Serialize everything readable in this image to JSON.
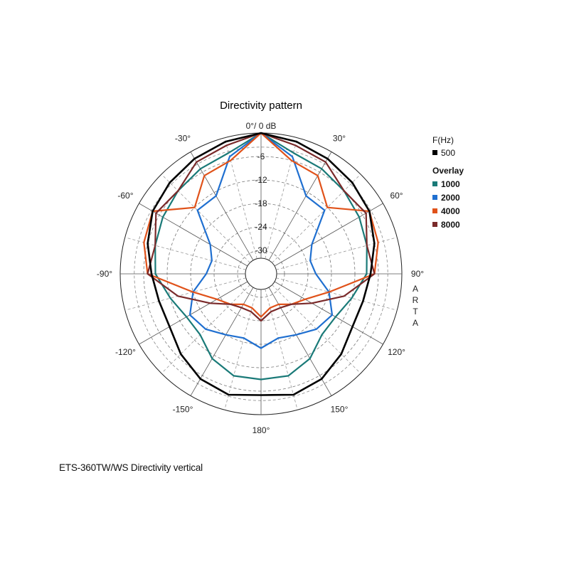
{
  "chart_data": {
    "type": "polar",
    "title": "Directivity pattern",
    "zero_label": "0°/ 0 dB",
    "db_rings": [
      -6,
      -12,
      -18,
      -24,
      -30
    ],
    "db_range": [
      -36,
      0
    ],
    "angle_labels": [
      {
        "angle": -30,
        "text": "-30°"
      },
      {
        "angle": 30,
        "text": "30°"
      },
      {
        "angle": -60,
        "text": "-60°"
      },
      {
        "angle": 60,
        "text": "60°"
      },
      {
        "angle": -90,
        "text": "-90°"
      },
      {
        "angle": 90,
        "text": "90°"
      },
      {
        "angle": -120,
        "text": "-120°"
      },
      {
        "angle": 120,
        "text": "120°"
      },
      {
        "angle": -150,
        "text": "-150°"
      },
      {
        "angle": 150,
        "text": "150°"
      },
      {
        "angle": 180,
        "text": "180°"
      }
    ],
    "watermark": "ARTA",
    "grid": true,
    "legend": {
      "heading": "F(Hz)",
      "main": {
        "name": "500",
        "color": "#000000"
      },
      "overlay_heading": "Overlay",
      "overlays": [
        {
          "name": "1000",
          "color": "#1a7a78"
        },
        {
          "name": "2000",
          "color": "#1f6fd0"
        },
        {
          "name": "4000",
          "color": "#e0521a"
        },
        {
          "name": "8000",
          "color": "#7a2a2a"
        }
      ],
      "placement": "right"
    },
    "series": [
      {
        "name": "500",
        "color": "#000000",
        "angles": [
          0,
          15,
          30,
          45,
          60,
          75,
          90,
          105,
          120,
          135,
          150,
          165,
          180
        ],
        "db": [
          0,
          -1,
          -2,
          -3,
          -4,
          -6,
          -8,
          -9,
          -9,
          -7,
          -5,
          -4,
          -5
        ]
      },
      {
        "name": "1000",
        "color": "#1a7a78",
        "angles": [
          0,
          15,
          30,
          45,
          60,
          75,
          90,
          105,
          120,
          135,
          150,
          165,
          180
        ],
        "db": [
          0,
          -4,
          -5,
          -6,
          -7,
          -8,
          -9,
          -12,
          -14,
          -14,
          -11,
          -9,
          -9
        ]
      },
      {
        "name": "2000",
        "color": "#1f6fd0",
        "angles": [
          0,
          15,
          30,
          45,
          60,
          75,
          90,
          105,
          120,
          135,
          150,
          165,
          180
        ],
        "db": [
          0,
          -5,
          -13,
          -13,
          -21,
          -23,
          -22,
          -18,
          -15,
          -16,
          -18,
          -19,
          -17
        ]
      },
      {
        "name": "4000",
        "color": "#e0521a",
        "angles": [
          0,
          15,
          30,
          45,
          60,
          75,
          90,
          105,
          120,
          135,
          150,
          165,
          180
        ],
        "db": [
          0,
          -6,
          -7,
          -12,
          -4,
          -5,
          -7,
          -18,
          -23,
          -25,
          -27,
          -27,
          -25
        ]
      },
      {
        "name": "8000",
        "color": "#7a2a2a",
        "angles": [
          0,
          15,
          30,
          45,
          60,
          75,
          90,
          105,
          120,
          135,
          150,
          165,
          180
        ],
        "db": [
          0,
          -2,
          -3,
          -6,
          -5,
          -8,
          -7,
          -14,
          -21,
          -25,
          -26,
          -26,
          -24
        ]
      }
    ]
  },
  "caption": "ETS-360TW/WS  Directivity vertical"
}
